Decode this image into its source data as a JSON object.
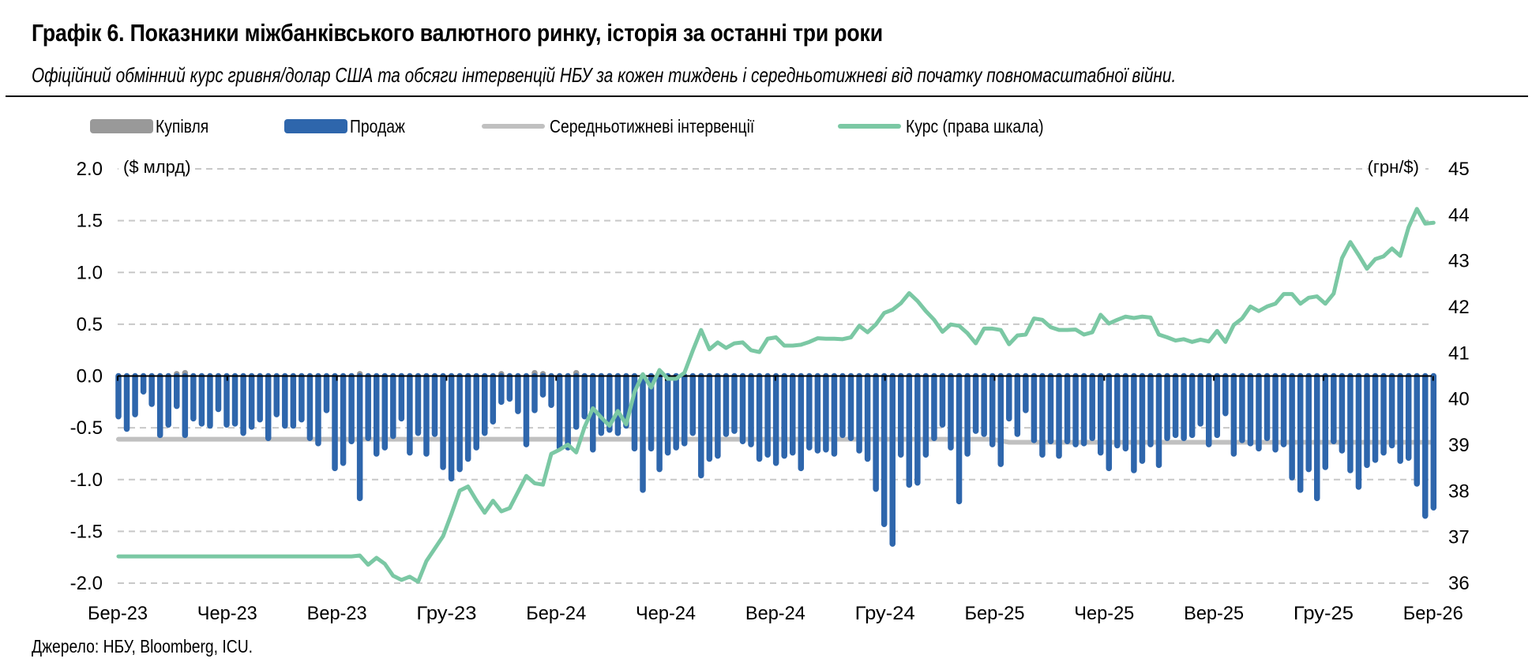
{
  "header": {
    "title": "Графік 6. Показники міжбанківського валютного ринку, історія за останні три роки",
    "subtitle": "Офіційний обмінний курс гривня/долар США та обсяги інтервенцій НБУ за кожен тиждень і середньотижневі від початку повномасштабної війни."
  },
  "legend": [
    {
      "label": "Купівля",
      "kind": "box",
      "color": "#999999"
    },
    {
      "label": "Продаж",
      "kind": "box",
      "color": "#2E66AC"
    },
    {
      "label": "Середньотижневі інтервенції",
      "kind": "line",
      "color": "#C0C0C0"
    },
    {
      "label": "Курс (права шкала)",
      "kind": "line",
      "color": "#7BC8A4"
    }
  ],
  "source": "Джерело: НБУ, Bloomberg, ICU.",
  "chart_data": {
    "type": "bar",
    "title": "Графік 6. Показники міжбанківського валютного ринку, історія за останні три роки",
    "ylabel": "($ млрд)",
    "y2label": "(грн/$)",
    "ylim": [
      -2.0,
      2.0
    ],
    "y2lim": [
      36,
      45
    ],
    "yticks": [
      "2.0",
      "1.5",
      "1.0",
      "0.5",
      "0.0",
      "-0.5",
      "-1.0",
      "-1.5",
      "-2.0"
    ],
    "y2ticks": [
      "45",
      "44",
      "43",
      "42",
      "41",
      "40",
      "39",
      "38",
      "37",
      "36"
    ],
    "xticks": [
      "Бер-23",
      "Чер-23",
      "Вер-23",
      "Гру-23",
      "Бер-24",
      "Чер-24",
      "Вер-24",
      "Гру-24",
      "Бер-25",
      "Чер-25",
      "Вер-25",
      "Гру-25",
      "Бер-26"
    ],
    "weeks_per_tick": 13.17,
    "grid": true,
    "legend_position": "top",
    "colors": {
      "buy": "#999999",
      "sell": "#2E66AC",
      "avg": "#C0C0C0",
      "rate": "#7BC8A4",
      "grid": "#C8C8C8",
      "axis": "#000000"
    },
    "series": [
      {
        "name": "Купівля",
        "type": "bar",
        "values": [
          0,
          0,
          0,
          0,
          0,
          0,
          0,
          0.02,
          0.03,
          0,
          0,
          0,
          0,
          0,
          0,
          0,
          0,
          0,
          0,
          0,
          0,
          0,
          0,
          0,
          0,
          0,
          0,
          0,
          0,
          0.02,
          0,
          0,
          0,
          0,
          0,
          0,
          0,
          0,
          0,
          0,
          0,
          0,
          0,
          0,
          0,
          0,
          0.02,
          0,
          0,
          0,
          0.03,
          0.02,
          0,
          0,
          0,
          0.03,
          0,
          0,
          0,
          0,
          0,
          0,
          0,
          0,
          0,
          0,
          0,
          0,
          0,
          0,
          0,
          0,
          0,
          0,
          0,
          0,
          0,
          0,
          0,
          0,
          0,
          0,
          0,
          0,
          0,
          0,
          0,
          0,
          0,
          0,
          0,
          0,
          0,
          0,
          0,
          0,
          0,
          0,
          0,
          0,
          0,
          0,
          0,
          0,
          0,
          0,
          0,
          0,
          0,
          0,
          0,
          0,
          0,
          0,
          0,
          0,
          0,
          0,
          0,
          0,
          0,
          0,
          0,
          0,
          0,
          0,
          0,
          0,
          0,
          0,
          0,
          0,
          0,
          0,
          0,
          0,
          0,
          0,
          0,
          0,
          0,
          0,
          0,
          0,
          0,
          0,
          0,
          0,
          0,
          0,
          0,
          0,
          0,
          0,
          0,
          0,
          0,
          0,
          0
        ]
      },
      {
        "name": "Продаж",
        "type": "bar",
        "values": [
          -0.39,
          -0.51,
          -0.37,
          -0.15,
          -0.27,
          -0.57,
          -0.47,
          -0.29,
          -0.57,
          -0.41,
          -0.46,
          -0.48,
          -0.32,
          -0.47,
          -0.46,
          -0.55,
          -0.49,
          -0.42,
          -0.6,
          -0.37,
          -0.48,
          -0.48,
          -0.42,
          -0.6,
          -0.65,
          -0.33,
          -0.89,
          -0.84,
          -0.63,
          -1.18,
          -0.6,
          -0.75,
          -0.69,
          -0.58,
          -0.41,
          -0.74,
          -0.55,
          -0.75,
          -0.56,
          -0.88,
          -0.99,
          -0.9,
          -0.8,
          -0.69,
          -0.55,
          -0.44,
          -0.25,
          -0.22,
          -0.34,
          -0.66,
          -0.33,
          -0.18,
          -0.28,
          -0.69,
          -0.69,
          -0.49,
          -0.39,
          -0.71,
          -0.55,
          -0.52,
          -0.55,
          -0.48,
          -0.7,
          -1.1,
          -0.7,
          -0.9,
          -0.74,
          -0.69,
          -0.65,
          -0.55,
          -0.96,
          -0.8,
          -0.77,
          -0.56,
          -0.53,
          -0.63,
          -0.66,
          -0.8,
          -0.76,
          -0.84,
          -0.77,
          -0.74,
          -0.89,
          -0.69,
          -0.72,
          -0.71,
          -0.75,
          -0.57,
          -0.6,
          -0.72,
          -0.8,
          -1.09,
          -1.43,
          -1.62,
          -0.76,
          -1.05,
          -1.03,
          -0.76,
          -0.6,
          -0.47,
          -0.69,
          -1.21,
          -0.75,
          -0.53,
          -0.56,
          -0.66,
          -0.85,
          -0.41,
          -0.56,
          -0.33,
          -0.62,
          -0.76,
          -0.63,
          -0.77,
          -0.63,
          -0.66,
          -0.65,
          -0.6,
          -0.74,
          -0.89,
          -0.67,
          -0.7,
          -0.91,
          -0.82,
          -0.66,
          -0.86,
          -0.6,
          -0.57,
          -0.6,
          -0.57,
          -0.46,
          -0.66,
          -0.57,
          -0.36,
          -0.75,
          -0.62,
          -0.65,
          -0.7,
          -0.6,
          -0.71,
          -0.66,
          -0.98,
          -1.1,
          -0.9,
          -1.18,
          -0.88,
          -0.63,
          -0.72,
          -0.91,
          -1.07,
          -0.86,
          -0.81,
          -0.74,
          -0.67,
          -0.82,
          -0.79,
          -1.04,
          -1.35,
          -1.27
        ]
      },
      {
        "name": "Середньотижневі інтервенції",
        "type": "line",
        "axis": "left",
        "values_by_segment": [
          {
            "from_week": 0,
            "to_week": 105,
            "value": -0.61
          },
          {
            "from_week": 107,
            "to_week": 158,
            "value": -0.64
          }
        ]
      },
      {
        "name": "Курс (права шкала)",
        "type": "line",
        "axis": "right",
        "values": [
          36.58,
          36.58,
          36.58,
          36.58,
          36.58,
          36.58,
          36.58,
          36.58,
          36.58,
          36.58,
          36.58,
          36.58,
          36.58,
          36.58,
          36.58,
          36.58,
          36.58,
          36.58,
          36.58,
          36.58,
          36.58,
          36.58,
          36.58,
          36.58,
          36.58,
          36.58,
          36.58,
          36.58,
          36.58,
          36.6,
          36.4,
          36.55,
          36.42,
          36.16,
          36.07,
          36.14,
          36.03,
          36.48,
          36.75,
          37.02,
          37.5,
          38.01,
          38.1,
          37.8,
          37.53,
          37.79,
          37.56,
          37.63,
          37.98,
          38.33,
          38.17,
          38.14,
          38.81,
          38.9,
          39.01,
          38.84,
          39.39,
          39.8,
          39.6,
          39.42,
          39.74,
          39.45,
          40.15,
          40.54,
          40.25,
          40.63,
          40.44,
          40.44,
          40.57,
          41.05,
          41.5,
          41.08,
          41.23,
          41.11,
          41.21,
          41.23,
          41.06,
          41.02,
          41.31,
          41.34,
          41.16,
          41.16,
          41.18,
          41.24,
          41.32,
          41.31,
          41.31,
          41.3,
          41.34,
          41.59,
          41.45,
          41.62,
          41.87,
          41.94,
          42.08,
          42.3,
          42.13,
          41.91,
          41.72,
          41.46,
          41.62,
          41.59,
          41.43,
          41.21,
          41.53,
          41.53,
          41.5,
          41.19,
          41.38,
          41.4,
          41.75,
          41.72,
          41.56,
          41.5,
          41.5,
          41.51,
          41.4,
          41.45,
          41.83,
          41.64,
          41.72,
          41.79,
          41.76,
          41.79,
          41.77,
          41.4,
          41.34,
          41.27,
          41.3,
          41.24,
          41.29,
          41.25,
          41.48,
          41.24,
          41.61,
          41.75,
          42.01,
          41.91,
          42.01,
          42.07,
          42.28,
          42.28,
          42.07,
          42.2,
          42.23,
          42.07,
          42.29,
          43.06,
          43.41,
          43.13,
          42.83,
          43.04,
          43.1,
          43.27,
          43.11,
          43.73,
          44.13,
          43.81,
          43.83
        ]
      }
    ]
  }
}
